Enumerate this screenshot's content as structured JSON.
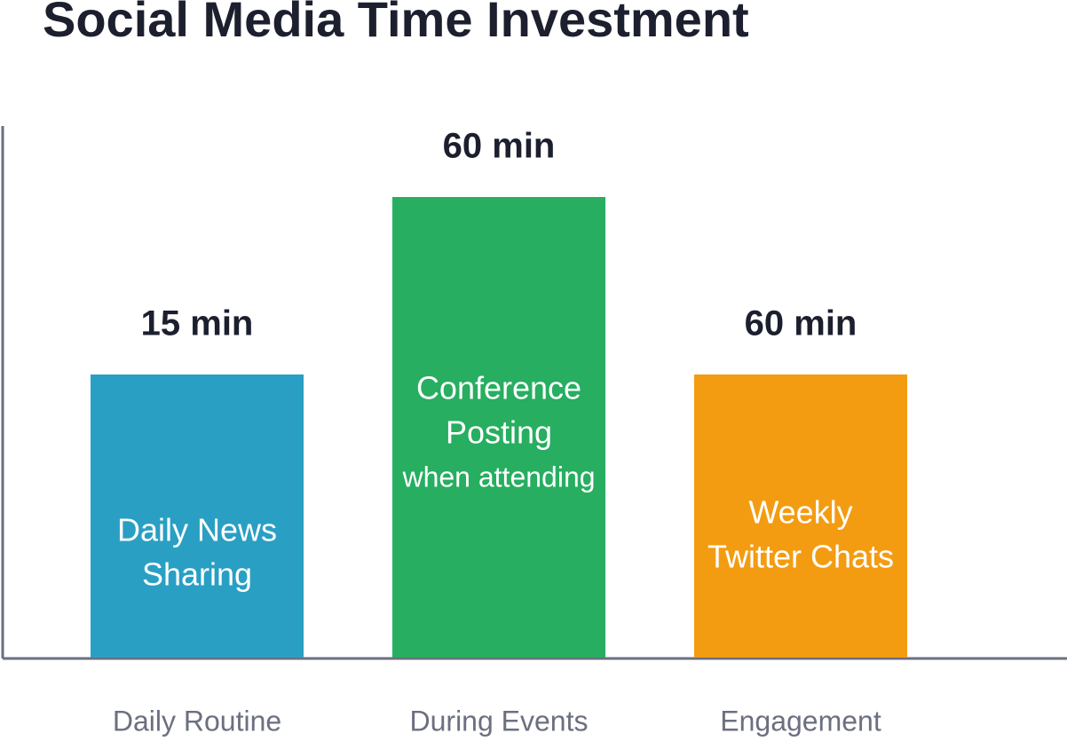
{
  "title": "Social Media Time Investment",
  "bars": [
    {
      "category": "Daily Routine",
      "value_label": "15 min",
      "label_lines": [
        "Daily News",
        "Sharing"
      ],
      "color": "#2a9fc4"
    },
    {
      "category": "During Events",
      "value_label": "60 min",
      "label_lines": [
        "Conference",
        "Posting"
      ],
      "note": "when attending",
      "color": "#27ae60"
    },
    {
      "category": "Engagement",
      "value_label": "60 min",
      "label_lines": [
        "Weekly",
        "Twitter Chats"
      ],
      "color": "#f39c12"
    }
  ]
}
